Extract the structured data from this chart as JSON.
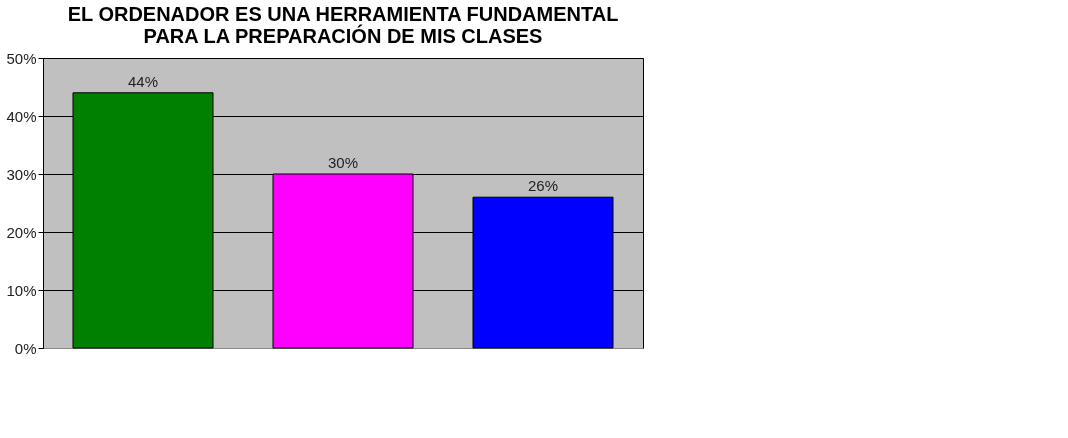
{
  "chart_data": {
    "type": "bar",
    "title": [
      "EL ORDENADOR ES UNA HERRAMIENTA FUNDAMENTAL",
      "PARA LA PREPARACIÓN DE MIS CLASES"
    ],
    "categories": [
      null,
      null,
      null
    ],
    "values": [
      44,
      30,
      26
    ],
    "colors": [
      "#008000",
      "#ff00ff",
      "#0000ff"
    ],
    "value_labels": [
      "44%",
      "30%",
      "26%"
    ],
    "ylim": [
      0,
      50
    ],
    "yticks": [
      {
        "value": 0,
        "label": "0%"
      },
      {
        "value": 10,
        "label": "10%"
      },
      {
        "value": 20,
        "label": "20%"
      },
      {
        "value": 30,
        "label": "30%"
      },
      {
        "value": 40,
        "label": "40%"
      },
      {
        "value": 50,
        "label": "50%"
      }
    ],
    "grid": "y"
  }
}
